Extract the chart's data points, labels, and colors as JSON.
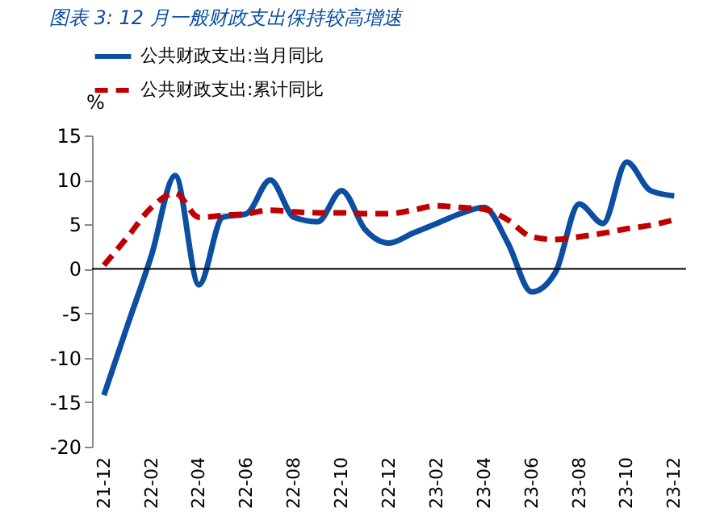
{
  "chart_data": {
    "type": "line",
    "title": "图表 3:  12 月一般财政支出保持较高增速",
    "ylabel": "%",
    "categories": [
      "21-12",
      null,
      "22-02",
      null,
      "22-04",
      null,
      "22-06",
      null,
      "22-08",
      null,
      "22-10",
      null,
      "22-12",
      null,
      "23-02",
      null,
      "23-04",
      null,
      "23-06",
      null,
      "23-08",
      null,
      "23-10",
      null,
      "23-12"
    ],
    "series": [
      {
        "name": "公共财政支出:当月同比",
        "color": "#0b4ea2",
        "line_style": "solid",
        "values": [
          -14.2,
          -6.3,
          1.5,
          10.5,
          -1.8,
          5.8,
          6.2,
          10.0,
          5.8,
          5.3,
          8.8,
          4.4,
          2.9,
          4.0,
          5.1,
          6.2,
          6.9,
          2.9,
          -2.6,
          -0.4,
          7.3,
          5.1,
          12.0,
          8.8,
          8.2
        ]
      },
      {
        "name": "公共财政支出:累计同比",
        "color": "#c00000",
        "line_style": "dashed",
        "values": [
          0.4,
          3.6,
          6.9,
          8.5,
          5.8,
          6.0,
          6.2,
          6.6,
          6.4,
          6.3,
          6.3,
          6.2,
          6.2,
          6.6,
          7.1,
          6.9,
          6.7,
          5.5,
          3.6,
          3.3,
          3.6,
          4.0,
          4.5,
          4.9,
          5.5
        ]
      }
    ],
    "ylim": [
      -20,
      15
    ],
    "yticks": [
      -20,
      -15,
      -10,
      -5,
      0,
      5,
      10,
      15
    ],
    "ref_lines": [
      {
        "axis": "y",
        "value": 0,
        "color": "#000000",
        "line_style": "solid"
      }
    ],
    "grid": false,
    "legend": "top",
    "marker": "none"
  }
}
